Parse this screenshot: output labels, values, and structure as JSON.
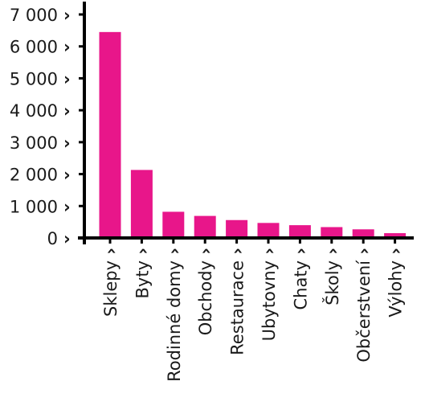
{
  "chart_data": {
    "type": "bar",
    "title": "",
    "xlabel": "",
    "ylabel": "",
    "categories": [
      "Sklepy",
      "Byty",
      "Rodinné domy",
      "Obchody",
      "Restaurace",
      "Ubytovny",
      "Chaty",
      "Školy",
      "Občerstvení",
      "Výlohy"
    ],
    "values": [
      6450,
      2130,
      820,
      690,
      560,
      470,
      400,
      340,
      270,
      150
    ],
    "ylim": [
      0,
      7000
    ],
    "yticks": [
      0,
      1000,
      2000,
      3000,
      4000,
      5000,
      6000,
      7000
    ],
    "ytick_labels": [
      "0",
      "1 000",
      "2 000",
      "3 000",
      "4 000",
      "5 000",
      "6 000",
      "7 000"
    ],
    "marker": "›",
    "grid": false,
    "bar_color": "#E8168A"
  }
}
